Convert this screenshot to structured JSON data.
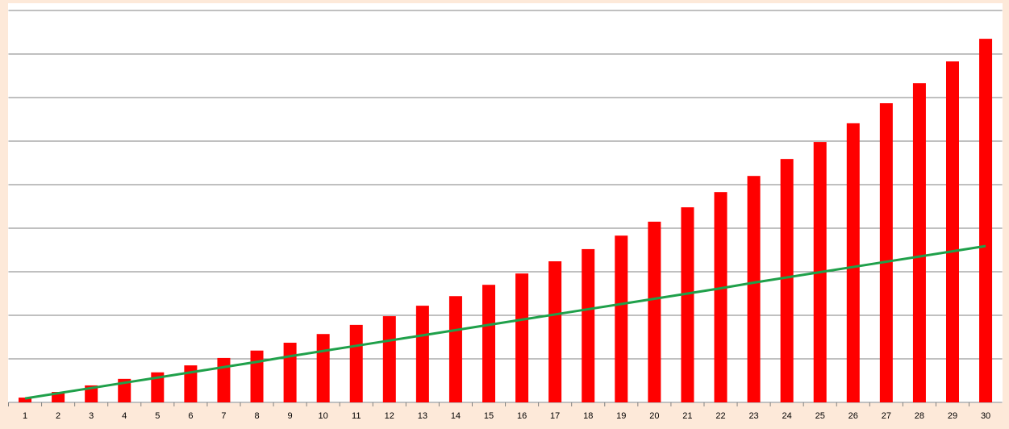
{
  "chart_data": {
    "type": "bar",
    "categories": [
      "1",
      "2",
      "3",
      "4",
      "5",
      "6",
      "7",
      "8",
      "9",
      "10",
      "11",
      "12",
      "13",
      "14",
      "15",
      "16",
      "17",
      "18",
      "19",
      "20",
      "21",
      "22",
      "23",
      "24",
      "25",
      "26",
      "27",
      "28",
      "29",
      "30"
    ],
    "series": [
      {
        "type": "bar",
        "color": "#ff0000",
        "values": [
          0.11,
          0.24,
          0.39,
          0.54,
          0.69,
          0.85,
          1.02,
          1.19,
          1.37,
          1.57,
          1.78,
          1.98,
          2.22,
          2.44,
          2.7,
          2.96,
          3.24,
          3.52,
          3.83,
          4.15,
          4.48,
          4.83,
          5.2,
          5.59,
          5.98,
          6.41,
          6.87,
          7.33,
          7.83,
          8.35
        ]
      },
      {
        "type": "line",
        "color": "#1fa04a",
        "values": [
          0.09,
          0.21,
          0.33,
          0.45,
          0.57,
          0.69,
          0.81,
          0.93,
          1.06,
          1.18,
          1.3,
          1.42,
          1.54,
          1.66,
          1.78,
          1.9,
          2.02,
          2.14,
          2.26,
          2.38,
          2.5,
          2.62,
          2.75,
          2.87,
          2.99,
          3.11,
          3.23,
          3.35,
          3.47,
          3.59
        ]
      }
    ],
    "ylim": [
      0,
      9
    ],
    "yticks": [
      1,
      2,
      3,
      4,
      5,
      6,
      7,
      8,
      9
    ],
    "grid": true
  }
}
